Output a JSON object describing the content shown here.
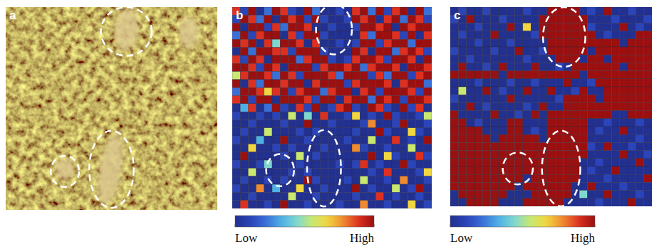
{
  "image_panel": {
    "panel_label": "a"
  },
  "chart_data": [
    {
      "type": "heatmap",
      "panel_label": "b",
      "colorbar": {
        "range": [
          0,
          9
        ],
        "ticks": [
          {
            "value": 0,
            "label": "Low"
          },
          {
            "value": 9,
            "label": "High"
          }
        ]
      },
      "cells": [
        [
          8,
          1,
          9,
          0,
          2,
          9,
          8,
          1,
          0,
          9,
          2,
          0,
          0,
          1,
          0,
          8,
          9,
          2,
          9,
          1,
          8,
          9,
          0,
          9,
          2
        ],
        [
          1,
          9,
          8,
          2,
          9,
          0,
          9,
          8,
          9,
          1,
          9,
          1,
          0,
          0,
          1,
          9,
          8,
          9,
          0,
          8,
          9,
          2,
          9,
          8,
          1
        ],
        [
          9,
          0,
          9,
          9,
          1,
          8,
          2,
          9,
          9,
          8,
          0,
          0,
          1,
          0,
          0,
          1,
          9,
          9,
          8,
          9,
          0,
          9,
          8,
          9,
          9
        ],
        [
          2,
          9,
          1,
          8,
          9,
          9,
          0,
          8,
          1,
          9,
          9,
          1,
          0,
          0,
          0,
          0,
          8,
          2,
          9,
          9,
          8,
          1,
          9,
          0,
          8
        ],
        [
          9,
          8,
          9,
          0,
          8,
          4,
          9,
          9,
          8,
          0,
          8,
          0,
          0,
          1,
          0,
          1,
          9,
          9,
          1,
          8,
          9,
          9,
          2,
          9,
          9
        ],
        [
          0,
          9,
          2,
          9,
          9,
          8,
          8,
          1,
          9,
          9,
          9,
          1,
          0,
          0,
          0,
          9,
          8,
          0,
          9,
          9,
          2,
          8,
          9,
          8,
          1
        ],
        [
          8,
          1,
          9,
          8,
          0,
          9,
          9,
          9,
          2,
          8,
          9,
          9,
          1,
          0,
          1,
          8,
          9,
          9,
          8,
          1,
          9,
          9,
          8,
          0,
          9
        ],
        [
          9,
          9,
          8,
          1,
          9,
          8,
          0,
          9,
          9,
          9,
          1,
          8,
          9,
          9,
          8,
          9,
          2,
          8,
          9,
          9,
          8,
          0,
          9,
          9,
          8
        ],
        [
          5,
          8,
          9,
          9,
          8,
          2,
          9,
          8,
          1,
          9,
          9,
          9,
          8,
          2,
          9,
          9,
          9,
          1,
          8,
          2,
          9,
          9,
          1,
          8,
          9
        ],
        [
          9,
          0,
          8,
          2,
          9,
          9,
          8,
          9,
          9,
          0,
          8,
          9,
          9,
          9,
          1,
          8,
          9,
          9,
          9,
          8,
          0,
          8,
          9,
          9,
          2
        ],
        [
          2,
          9,
          9,
          8,
          6,
          8,
          9,
          1,
          8,
          9,
          9,
          2,
          8,
          9,
          9,
          0,
          8,
          9,
          1,
          9,
          9,
          9,
          8,
          1,
          9
        ],
        [
          8,
          9,
          1,
          9,
          9,
          0,
          9,
          9,
          9,
          8,
          1,
          9,
          9,
          0,
          8,
          9,
          9,
          2,
          9,
          8,
          9,
          1,
          9,
          9,
          8
        ],
        [
          0,
          3,
          8,
          0,
          2,
          9,
          1,
          0,
          8,
          1,
          9,
          0,
          1,
          8,
          9,
          1,
          0,
          9,
          8,
          1,
          0,
          9,
          1,
          8,
          0
        ],
        [
          1,
          0,
          0,
          1,
          0,
          1,
          0,
          5,
          0,
          4,
          0,
          8,
          0,
          0,
          1,
          6,
          0,
          1,
          0,
          9,
          1,
          0,
          0,
          1,
          5
        ],
        [
          0,
          0,
          1,
          0,
          0,
          0,
          1,
          0,
          0,
          9,
          0,
          0,
          1,
          0,
          0,
          0,
          1,
          7,
          0,
          0,
          1,
          9,
          0,
          0,
          1
        ],
        [
          0,
          1,
          0,
          0,
          5,
          0,
          0,
          0,
          1,
          0,
          1,
          0,
          0,
          0,
          0,
          1,
          0,
          0,
          9,
          1,
          0,
          0,
          6,
          1,
          0
        ],
        [
          1,
          0,
          0,
          3,
          0,
          0,
          9,
          0,
          0,
          1,
          0,
          0,
          0,
          0,
          1,
          0,
          0,
          5,
          0,
          0,
          8,
          0,
          1,
          0,
          9
        ],
        [
          0,
          0,
          6,
          0,
          0,
          1,
          0,
          1,
          0,
          0,
          0,
          1,
          0,
          0,
          0,
          7,
          1,
          0,
          0,
          1,
          0,
          0,
          5,
          0,
          0
        ],
        [
          0,
          9,
          0,
          0,
          0,
          0,
          1,
          0,
          5,
          0,
          1,
          0,
          0,
          0,
          0,
          0,
          0,
          9,
          0,
          6,
          1,
          0,
          0,
          8,
          1
        ],
        [
          1,
          0,
          0,
          1,
          4,
          0,
          0,
          0,
          1,
          0,
          0,
          0,
          0,
          1,
          0,
          1,
          8,
          0,
          1,
          0,
          0,
          9,
          1,
          0,
          0
        ],
        [
          0,
          0,
          5,
          0,
          0,
          0,
          0,
          1,
          0,
          1,
          0,
          0,
          0,
          0,
          0,
          0,
          0,
          1,
          0,
          8,
          0,
          0,
          0,
          1,
          6
        ],
        [
          0,
          1,
          0,
          0,
          1,
          0,
          1,
          0,
          0,
          9,
          1,
          0,
          0,
          0,
          1,
          0,
          5,
          0,
          0,
          1,
          0,
          7,
          0,
          0,
          1
        ],
        [
          1,
          0,
          0,
          7,
          0,
          3,
          0,
          0,
          6,
          0,
          0,
          1,
          0,
          0,
          0,
          9,
          0,
          1,
          0,
          0,
          5,
          0,
          1,
          9,
          0
        ],
        [
          0,
          0,
          1,
          0,
          0,
          0,
          0,
          5,
          0,
          0,
          1,
          0,
          0,
          0,
          0,
          1,
          0,
          0,
          8,
          0,
          1,
          0,
          0,
          1,
          0
        ],
        [
          0,
          8,
          0,
          0,
          1,
          0,
          9,
          0,
          0,
          1,
          0,
          0,
          0,
          1,
          0,
          0,
          7,
          0,
          0,
          1,
          0,
          0,
          6,
          0,
          1
        ]
      ]
    },
    {
      "type": "heatmap",
      "panel_label": "c",
      "colorbar": {
        "range": [
          0,
          9
        ],
        "ticks": [
          {
            "value": 0,
            "label": "Low"
          },
          {
            "value": 9,
            "label": "High"
          }
        ]
      },
      "cells": [
        [
          0,
          1,
          0,
          0,
          1,
          0,
          0,
          0,
          0,
          1,
          0,
          0,
          9,
          9,
          9,
          9,
          0,
          1,
          0,
          9,
          0,
          0,
          1,
          0,
          0
        ],
        [
          1,
          0,
          9,
          0,
          0,
          0,
          1,
          0,
          0,
          0,
          0,
          9,
          9,
          9,
          9,
          9,
          9,
          0,
          0,
          0,
          1,
          0,
          0,
          0,
          1
        ],
        [
          0,
          0,
          0,
          1,
          0,
          0,
          0,
          9,
          0,
          6,
          0,
          9,
          9,
          9,
          9,
          9,
          9,
          1,
          0,
          0,
          0,
          9,
          0,
          1,
          0
        ],
        [
          0,
          1,
          0,
          0,
          0,
          9,
          0,
          0,
          0,
          0,
          1,
          9,
          9,
          9,
          9,
          9,
          9,
          9,
          0,
          1,
          0,
          0,
          0,
          9,
          9
        ],
        [
          0,
          0,
          0,
          1,
          0,
          0,
          0,
          1,
          0,
          0,
          0,
          0,
          9,
          9,
          9,
          9,
          9,
          9,
          9,
          9,
          9,
          0,
          9,
          9,
          9
        ],
        [
          1,
          0,
          0,
          0,
          0,
          1,
          0,
          0,
          9,
          0,
          0,
          1,
          9,
          9,
          9,
          9,
          9,
          0,
          9,
          9,
          9,
          9,
          9,
          9,
          9
        ],
        [
          0,
          0,
          1,
          0,
          0,
          0,
          0,
          0,
          0,
          1,
          0,
          0,
          0,
          9,
          9,
          9,
          0,
          9,
          9,
          0,
          9,
          9,
          9,
          9,
          9
        ],
        [
          0,
          9,
          0,
          0,
          1,
          0,
          9,
          0,
          0,
          0,
          9,
          0,
          0,
          1,
          0,
          9,
          9,
          9,
          9,
          9,
          9,
          0,
          9,
          9,
          9
        ],
        [
          9,
          9,
          9,
          9,
          9,
          9,
          0,
          9,
          9,
          9,
          9,
          9,
          9,
          9,
          9,
          9,
          0,
          9,
          9,
          9,
          9,
          9,
          9,
          9,
          9
        ],
        [
          0,
          0,
          0,
          1,
          0,
          0,
          0,
          1,
          0,
          0,
          1,
          0,
          0,
          0,
          9,
          0,
          0,
          1,
          9,
          9,
          9,
          9,
          9,
          9,
          9
        ],
        [
          0,
          5,
          0,
          0,
          9,
          0,
          1,
          0,
          0,
          9,
          0,
          0,
          9,
          0,
          0,
          1,
          9,
          0,
          0,
          9,
          9,
          9,
          9,
          9,
          9
        ],
        [
          1,
          0,
          0,
          0,
          0,
          0,
          0,
          9,
          0,
          0,
          0,
          0,
          0,
          1,
          9,
          9,
          9,
          9,
          0,
          9,
          9,
          9,
          9,
          9,
          9
        ],
        [
          0,
          0,
          9,
          0,
          1,
          0,
          0,
          0,
          0,
          1,
          0,
          9,
          0,
          0,
          9,
          9,
          9,
          9,
          9,
          9,
          9,
          9,
          9,
          9,
          9
        ],
        [
          9,
          0,
          0,
          0,
          0,
          9,
          0,
          0,
          1,
          0,
          9,
          0,
          9,
          9,
          9,
          9,
          9,
          9,
          9,
          9,
          0,
          0,
          9,
          9,
          9
        ],
        [
          9,
          9,
          0,
          1,
          0,
          0,
          0,
          9,
          9,
          0,
          0,
          0,
          9,
          9,
          9,
          9,
          9,
          0,
          0,
          1,
          0,
          0,
          0,
          1,
          0
        ],
        [
          9,
          9,
          9,
          9,
          0,
          0,
          0,
          9,
          9,
          0,
          1,
          0,
          9,
          9,
          9,
          9,
          9,
          0,
          1,
          0,
          0,
          9,
          0,
          0,
          0
        ],
        [
          9,
          9,
          9,
          9,
          9,
          0,
          9,
          9,
          9,
          9,
          9,
          0,
          9,
          9,
          9,
          9,
          9,
          0,
          0,
          0,
          0,
          0,
          0,
          1,
          0
        ],
        [
          9,
          9,
          9,
          9,
          9,
          9,
          9,
          9,
          9,
          9,
          9,
          9,
          9,
          9,
          9,
          9,
          9,
          1,
          0,
          9,
          0,
          0,
          1,
          0,
          0
        ],
        [
          9,
          9,
          9,
          9,
          9,
          9,
          9,
          9,
          9,
          9,
          9,
          9,
          9,
          9,
          9,
          9,
          9,
          0,
          0,
          0,
          0,
          9,
          0,
          0,
          1
        ],
        [
          9,
          9,
          9,
          9,
          9,
          9,
          9,
          9,
          9,
          9,
          9,
          9,
          9,
          9,
          9,
          9,
          0,
          0,
          1,
          0,
          0,
          0,
          0,
          9,
          0
        ],
        [
          9,
          9,
          9,
          9,
          9,
          9,
          9,
          9,
          9,
          9,
          9,
          9,
          9,
          9,
          9,
          9,
          0,
          1,
          0,
          0,
          9,
          0,
          0,
          0,
          0
        ],
        [
          9,
          9,
          9,
          9,
          9,
          9,
          9,
          9,
          9,
          0,
          9,
          9,
          9,
          9,
          9,
          9,
          0,
          0,
          0,
          1,
          0,
          0,
          0,
          0,
          9
        ],
        [
          9,
          9,
          9,
          9,
          9,
          9,
          9,
          9,
          0,
          9,
          9,
          9,
          9,
          9,
          9,
          0,
          0,
          9,
          0,
          0,
          0,
          1,
          0,
          0,
          0
        ],
        [
          0,
          9,
          9,
          9,
          9,
          9,
          9,
          0,
          0,
          0,
          9,
          9,
          9,
          9,
          9,
          0,
          4,
          0,
          0,
          9,
          0,
          0,
          0,
          1,
          0
        ],
        [
          0,
          0,
          9,
          9,
          9,
          9,
          0,
          0,
          0,
          9,
          9,
          9,
          9,
          9,
          0,
          0,
          0,
          0,
          1,
          0,
          0,
          0,
          9,
          0,
          0
        ]
      ]
    }
  ]
}
